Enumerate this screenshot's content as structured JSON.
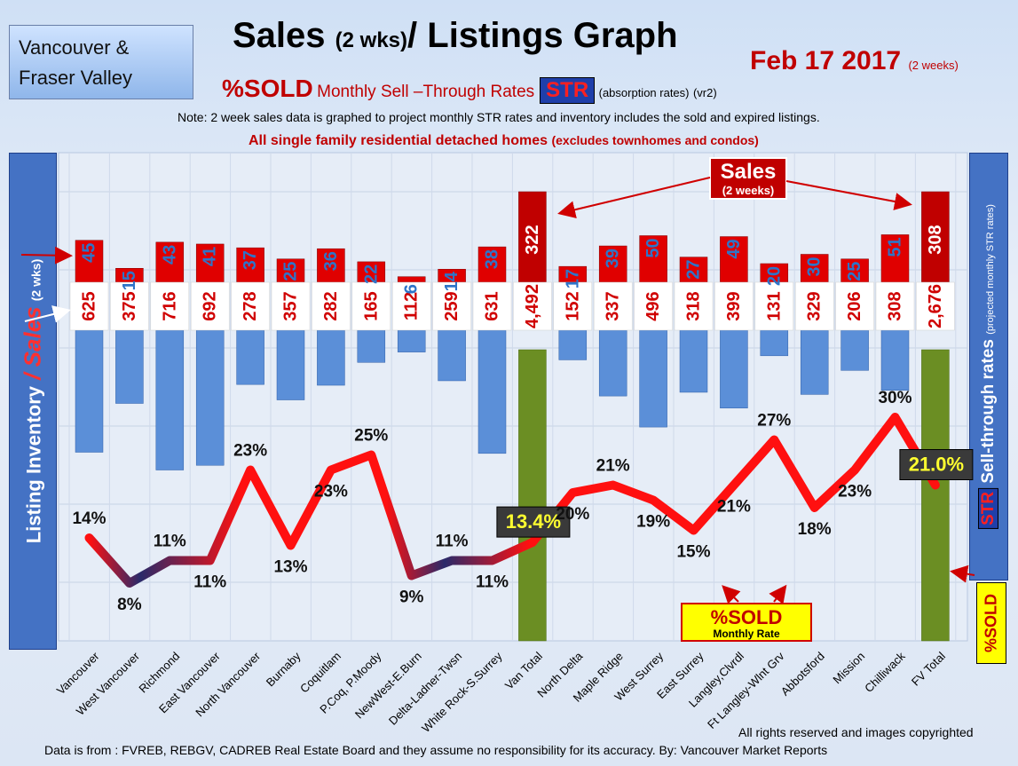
{
  "header": {
    "region_line1": "Vancouver &",
    "region_line2": "Fraser Valley",
    "title_main": "Sales ",
    "title_paren": "(2 wks)",
    "title_rest": "/ Listings Graph",
    "date": "Feb 17 2017",
    "date_paren": "(2 weeks)",
    "sold_label": "%SOLD",
    "subtitle_words": "Monthly Sell –Through Rates",
    "str_badge": "STR",
    "absorption": "(absorption rates)",
    "version": "(vr2)",
    "note": "Note: 2 week sales data is graphed to project monthly STR rates and inventory includes the sold and expired listings.",
    "note2_main": "All single family residential detached homes",
    "note2_paren": "(excludes townhomes and condos)"
  },
  "axes": {
    "left_part1": "Listing Inventory",
    "left_slash": " / ",
    "left_part2": "Sales",
    "left_part3": "(2 wks)",
    "right_str": "STR",
    "right_main": "Sell-through rates",
    "right_small": "(projected monthly STR rates)",
    "sold_side": "%SOLD"
  },
  "callouts": {
    "sales_line1": "Sales",
    "sales_line2": "(2 weeks)",
    "sold_line1": "%SOLD",
    "sold_line2": "Monthly Rate"
  },
  "footer": {
    "rights": "All rights reserved and  images copyrighted",
    "source": "Data is from : FVREB, REBGV, CADREB Real Estate Board and they  assume no responsibility for its accuracy.  By: Vancouver Market Reports"
  },
  "colors": {
    "sales_bar": "#e00000",
    "inventory_bar": "#5b8fd8",
    "total_bar": "#6b8e23",
    "line": "#ff1010",
    "line_dark": "#2a2a6a",
    "label_red": "#d00000",
    "label_blue": "#2e74c8"
  },
  "chart_data": {
    "type": "bar",
    "categories": [
      "Vancouver",
      "West Vancouver",
      "Richmond",
      "East Vancouver",
      "North Vancouver",
      "Burnaby",
      "Coquitlam",
      "P.Coq, P.Moody",
      "NewWest-E.Burn",
      "Delta-Ladner-Twsn",
      "White Rock-S.Surrey",
      "Van Total",
      "North Delta",
      "Maple Ridge",
      "West Surrey",
      "East Surrey",
      "Langley,Clvrdl",
      "Ft Langley-Wlnt Grv",
      "Abbotsford",
      "Mission",
      "Chilliwack",
      "FV Total"
    ],
    "series": [
      {
        "name": "Sales",
        "values": [
          45,
          15,
          43,
          41,
          37,
          25,
          36,
          22,
          6,
          14,
          38,
          322,
          17,
          39,
          50,
          27,
          49,
          20,
          30,
          25,
          51,
          308
        ]
      },
      {
        "name": "Listing Inventory",
        "values": [
          625,
          375,
          716,
          692,
          278,
          357,
          282,
          165,
          112,
          259,
          631,
          4492,
          152,
          337,
          496,
          318,
          399,
          131,
          329,
          206,
          308,
          2676
        ]
      },
      {
        "name": "%SOLD",
        "values": [
          14,
          8,
          11,
          11,
          23,
          13,
          23,
          25,
          9,
          11,
          11,
          13.4,
          20,
          21,
          19,
          15,
          21,
          27,
          18,
          23,
          30,
          21.0
        ]
      }
    ],
    "inventory_labels": [
      "625",
      "375",
      "716",
      "692",
      "278",
      "357",
      "282",
      "165",
      "112",
      "259",
      "631",
      "4,492",
      "152",
      "337",
      "496",
      "318",
      "399",
      "131",
      "329",
      "206",
      "308",
      "2,676"
    ],
    "str_labels": [
      "14%",
      "8%",
      "11%",
      "11%",
      "23%",
      "13%",
      "23%",
      "25%",
      "9%",
      "11%",
      "11%",
      "13.4%",
      "20%",
      "21%",
      "19%",
      "15%",
      "21%",
      "27%",
      "18%",
      "23%",
      "30%",
      "21.0%"
    ],
    "totals": [
      "Van Total",
      "FV Total"
    ]
  }
}
